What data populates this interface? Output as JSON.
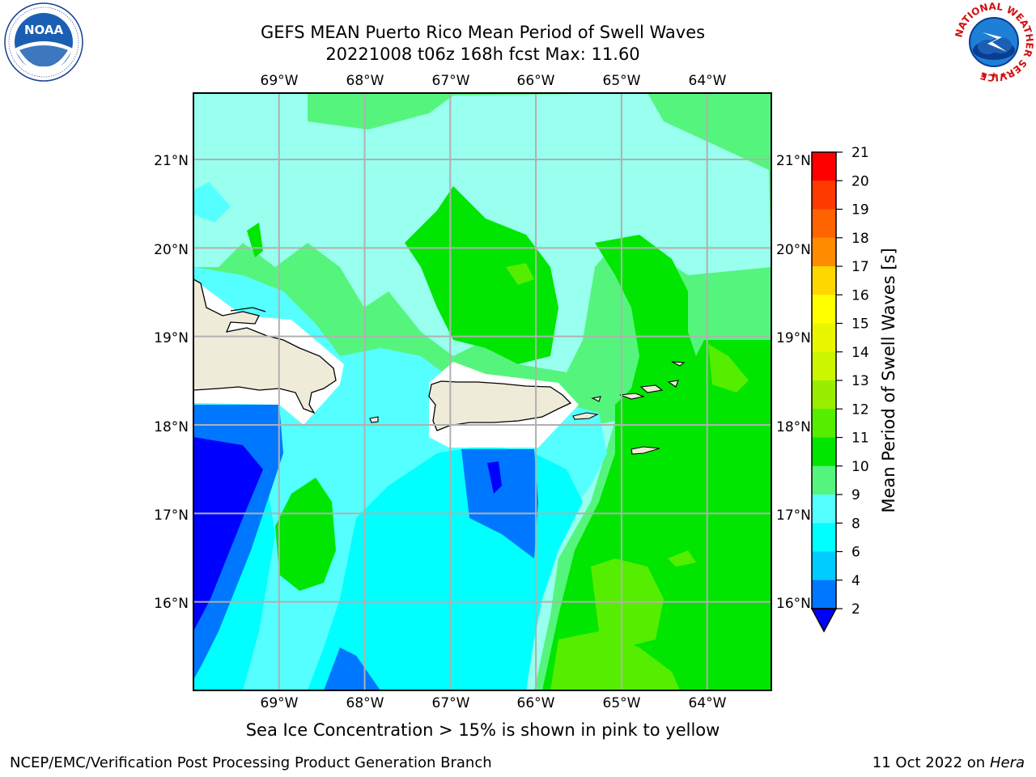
{
  "title": {
    "line1": "GEFS MEAN Puerto Rico Mean Period of Swell Waves",
    "line2": "20221008 t06z 168h fcst   Max: 11.60"
  },
  "logos": {
    "left": "noaa-logo",
    "left_text": "NOAA",
    "left_ring_text": "NATIONAL OCEANIC AND ATMOSPHERIC ADMINISTRATION · U.S. DEPARTMENT OF COMMERCE",
    "right": "nws-logo",
    "right_ring_text": "NATIONAL WEATHER SERVICE"
  },
  "map": {
    "lon_labels": [
      "69°W",
      "68°W",
      "67°W",
      "66°W",
      "65°W",
      "64°W"
    ],
    "lat_labels": [
      "21°N",
      "20°N",
      "19°N",
      "18°N",
      "17°N",
      "16°N"
    ],
    "lon_values": [
      -69,
      -68,
      -67,
      -66,
      -65,
      -64
    ],
    "lat_values": [
      21,
      20,
      19,
      18,
      17,
      16
    ],
    "lon_range": [
      -70,
      -63.25
    ],
    "lat_range": [
      15,
      21.75
    ],
    "grid": true,
    "land_color": "#efebd9",
    "gridline_color": "#b0b0b0"
  },
  "colorbar": {
    "label": "Mean Period of Swell Waves [s]",
    "ticks": [
      "21",
      "20",
      "19",
      "18",
      "17",
      "16",
      "15",
      "14",
      "13",
      "12",
      "11",
      "10",
      "9",
      "8",
      "6",
      "4",
      "2"
    ],
    "colors_top_to_bottom": [
      "#ff0000",
      "#ff3a00",
      "#ff6400",
      "#ff8c00",
      "#ffb300",
      "#ffd700",
      "#ffff00",
      "#eaf500",
      "#ccf500",
      "#99ee00",
      "#55ee00",
      "#00e600",
      "#55f57d",
      "#99ffee",
      "#55ffff",
      "#00ffff",
      "#00ccff",
      "#0077ff",
      "#0000ff"
    ],
    "extend": "min"
  },
  "chart_data": {
    "type": "heatmap",
    "title": "GEFS MEAN Puerto Rico Mean Period of Swell Waves",
    "subtitle": "20221008 t06z 168h fcst   Max: 11.60",
    "colorbar_label": "Mean Period of Swell Waves [s]",
    "levels": [
      2,
      4,
      6,
      8,
      9,
      10,
      11,
      12,
      13,
      14,
      15,
      16,
      17,
      18,
      19,
      20,
      21
    ],
    "max": 11.6,
    "grid": true
  },
  "caption": "Sea Ice Concentration > 15% is shown in pink to yellow",
  "footer": {
    "left": "NCEP/EMC/Verification Post Processing Product Generation Branch",
    "right_prefix": "11 Oct 2022 on ",
    "right_italic": "Hera"
  }
}
